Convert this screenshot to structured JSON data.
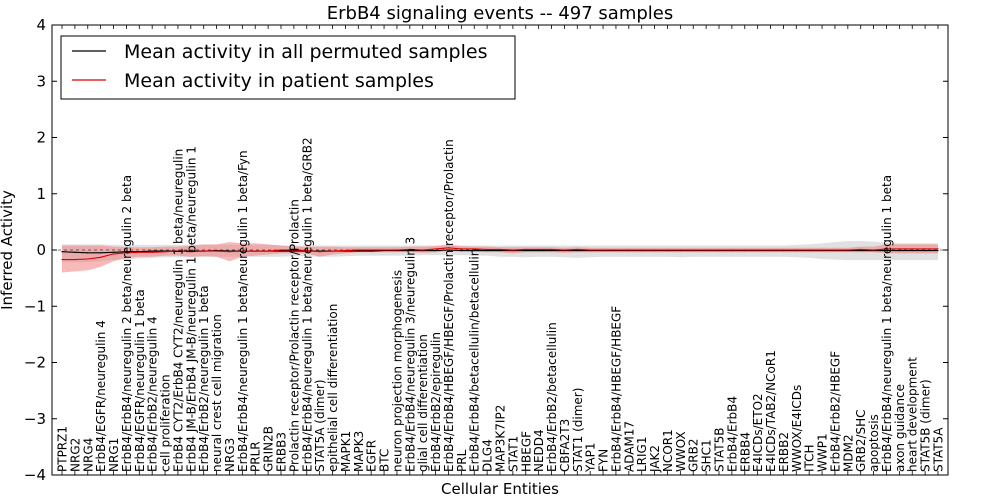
{
  "chart_data": {
    "type": "line",
    "title": "ErbB4 signaling events -- 497 samples",
    "xlabel": "Cellular Entities",
    "ylabel": "Inferred Activity",
    "ylim": [
      -4,
      4
    ],
    "yticks": [
      "−4",
      "−3",
      "−2",
      "−1",
      "0",
      "1",
      "2",
      "3",
      "4"
    ],
    "yticks_values": [
      -4,
      -3,
      -2,
      -1,
      0,
      1,
      2,
      3,
      4
    ],
    "legend_position": "top-left",
    "colors": {
      "permuted_line": "#000000",
      "patient_line": "#e00000",
      "permuted_band": "#c8c8c8",
      "patient_band": "#f08080"
    },
    "categories": [
      "PTPRZ1",
      "NRG2",
      "NRG4",
      "ErbB4/EGFR/neuregulin 4",
      "NRG1",
      "ErbB4/ErbB4/neuregulin 2 beta/neuregulin 2 beta",
      "ErbB4/EGFR/neuregulin 1 beta",
      "ErbB4/ErbB2/neuregulin 4",
      "cell proliferation",
      "ErbB4 CYT2/ErbB4 CYT2/neuregulin 1 beta/neuregulin",
      "ErbB4 JM-B/ErbB4 JM-B/neuregulin 1 beta/neuregulin 1",
      "ErbB4/ErbB2/neuregulin 1 beta",
      "neural crest cell migration",
      "NRG3",
      "ErbB4/ErbB4/neuregulin 1 beta/neuregulin 1 beta/Fyn",
      "PRLR",
      "GRIN2B",
      "ERBB3",
      "Prolactin receptor/Prolactin receptor/Prolactin",
      "ErbB4/ErbB4/neuregulin 1 beta/neuregulin 1 beta/GRB2",
      "STAT5A (dimer)",
      "epithelial cell differentiation",
      "MAPK1",
      "MAPK3",
      "EGFR",
      "BTC",
      "neuron projection morphogenesis",
      "ErbB4/ErbB4/neuregulin 3/neuregulin 3",
      "glial cell differentiation",
      "ErbB4/ErbB2/epiregulin",
      "ErbB4/ErbB4/HBEGF/HBEGF/Prolactin receptor/Prolactin",
      "PRL",
      "ErbB4/ErbB4/betacellulin/betacellulin",
      "DLG4",
      "MAP3K7IP2",
      "STAT1",
      "HBEGF",
      "NEDD4",
      "ErbB4/ErbB2/betacellulin",
      "CBFA2T3",
      "STAT1 (dimer)",
      "YAP1",
      "FYN",
      "ErbB4/ErbB4/HBEGF/HBEGF",
      "ADAM17",
      "LRIG1",
      "JAK2",
      "NCOR1",
      "WWOX",
      "GRB2",
      "SHC1",
      "STAT5B",
      "ErbB4/ErbB4",
      "ERBB4",
      "E4ICDs/ETO2",
      "E4ICDs/TAB2/NCoR1",
      "ERBB2",
      "WWOX/E4ICDs",
      "ITCH",
      "WWP1",
      "ErbB4/ErbB2/HBEGF",
      "MDM2",
      "GRB2/SHC",
      "apoptosis",
      "ErbB4/ErbB4/neuregulin 1 beta/neuregulin 1 beta",
      "axon guidance",
      "heart development",
      "STAT5B (dimer)",
      "STAT5A"
    ],
    "series": [
      {
        "name": "Mean activity in all permuted samples",
        "values": [
          -0.03,
          -0.04,
          -0.05,
          -0.05,
          -0.04,
          -0.03,
          -0.03,
          -0.02,
          -0.02,
          -0.02,
          -0.02,
          -0.02,
          -0.01,
          -0.02,
          -0.02,
          -0.02,
          -0.02,
          -0.02,
          -0.02,
          -0.02,
          -0.02,
          -0.02,
          -0.02,
          -0.02,
          -0.02,
          -0.01,
          -0.01,
          -0.01,
          -0.01,
          -0.01,
          0.0,
          -0.01,
          -0.01,
          -0.01,
          -0.01,
          -0.01,
          -0.01,
          -0.01,
          -0.01,
          -0.01,
          -0.01,
          -0.01,
          -0.01,
          -0.01,
          -0.01,
          -0.01,
          -0.01,
          -0.01,
          -0.01,
          -0.01,
          -0.01,
          -0.01,
          -0.01,
          -0.01,
          -0.01,
          -0.01,
          -0.01,
          -0.01,
          -0.01,
          -0.01,
          -0.01,
          -0.01,
          -0.01,
          -0.01,
          -0.01,
          -0.01,
          -0.01,
          -0.01,
          -0.01
        ],
        "lower": [
          -0.22,
          -0.22,
          -0.22,
          -0.2,
          -0.18,
          -0.17,
          -0.15,
          -0.14,
          -0.13,
          -0.13,
          -0.13,
          -0.12,
          -0.12,
          -0.12,
          -0.12,
          -0.12,
          -0.12,
          -0.12,
          -0.11,
          -0.11,
          -0.12,
          -0.12,
          -0.11,
          -0.1,
          -0.1,
          -0.1,
          -0.1,
          -0.1,
          -0.09,
          -0.09,
          -0.09,
          -0.09,
          -0.1,
          -0.1,
          -0.12,
          -0.12,
          -0.13,
          -0.12,
          -0.12,
          -0.13,
          -0.14,
          -0.13,
          -0.12,
          -0.12,
          -0.12,
          -0.12,
          -0.12,
          -0.12,
          -0.13,
          -0.12,
          -0.12,
          -0.12,
          -0.12,
          -0.12,
          -0.12,
          -0.12,
          -0.12,
          -0.13,
          -0.14,
          -0.16,
          -0.17,
          -0.18,
          -0.18,
          -0.18,
          -0.18,
          -0.18,
          -0.18,
          -0.18,
          -0.18
        ],
        "upper": [
          0.1,
          0.1,
          0.1,
          0.1,
          0.09,
          0.09,
          0.09,
          0.09,
          0.09,
          0.09,
          0.09,
          0.09,
          0.09,
          0.09,
          0.09,
          0.09,
          0.09,
          0.08,
          0.08,
          0.08,
          0.08,
          0.08,
          0.08,
          0.08,
          0.08,
          0.08,
          0.08,
          0.08,
          0.08,
          0.08,
          0.08,
          0.08,
          0.08,
          0.08,
          0.08,
          0.08,
          0.08,
          0.08,
          0.08,
          0.08,
          0.08,
          0.08,
          0.08,
          0.08,
          0.08,
          0.08,
          0.08,
          0.08,
          0.08,
          0.08,
          0.08,
          0.08,
          0.08,
          0.08,
          0.08,
          0.08,
          0.08,
          0.09,
          0.1,
          0.12,
          0.14,
          0.16,
          0.16,
          0.15,
          0.13,
          0.12,
          0.12,
          0.12,
          0.12
        ]
      },
      {
        "name": "Mean activity in patient samples",
        "values": [
          -0.17,
          -0.17,
          -0.16,
          -0.13,
          -0.07,
          -0.05,
          -0.04,
          -0.04,
          -0.03,
          -0.02,
          -0.03,
          -0.02,
          -0.02,
          -0.03,
          -0.02,
          -0.02,
          -0.02,
          0.0,
          0.0,
          -0.01,
          -0.03,
          -0.02,
          -0.01,
          0.0,
          0.0,
          0.0,
          0.0,
          0.01,
          0.0,
          0.02,
          0.04,
          0.02,
          0.02,
          0.01,
          0.01,
          0.0,
          0.01,
          0.01,
          0.01,
          0.0,
          0.01,
          0.0,
          0.0,
          0.0,
          0.0,
          0.0,
          0.0,
          0.0,
          0.0,
          0.0,
          0.0,
          0.0,
          0.0,
          0.0,
          0.0,
          0.0,
          0.0,
          0.0,
          0.0,
          0.0,
          0.0,
          0.0,
          0.01,
          0.0,
          0.02,
          0.02,
          0.02,
          0.02,
          0.02
        ],
        "lower": [
          -0.4,
          -0.38,
          -0.36,
          -0.3,
          -0.2,
          -0.14,
          -0.12,
          -0.12,
          -0.1,
          -0.1,
          -0.12,
          -0.11,
          -0.12,
          -0.2,
          -0.12,
          -0.1,
          -0.08,
          -0.06,
          -0.06,
          -0.06,
          -0.12,
          -0.08,
          -0.06,
          -0.04,
          -0.04,
          -0.04,
          -0.04,
          -0.04,
          -0.05,
          -0.04,
          -0.02,
          -0.03,
          -0.03,
          -0.04,
          -0.04,
          -0.06,
          -0.04,
          -0.04,
          -0.04,
          -0.05,
          -0.04,
          -0.04,
          -0.04,
          -0.04,
          -0.04,
          -0.04,
          -0.04,
          -0.04,
          -0.04,
          -0.04,
          -0.04,
          -0.04,
          -0.04,
          -0.04,
          -0.04,
          -0.04,
          -0.04,
          -0.04,
          -0.04,
          -0.04,
          -0.04,
          -0.04,
          -0.04,
          -0.04,
          -0.06,
          -0.06,
          -0.06,
          -0.06,
          -0.06
        ],
        "upper": [
          0.08,
          0.08,
          0.08,
          0.08,
          0.06,
          0.05,
          0.05,
          0.05,
          0.06,
          0.06,
          0.08,
          0.1,
          0.1,
          0.14,
          0.12,
          0.12,
          0.1,
          0.08,
          0.06,
          0.06,
          0.06,
          0.06,
          0.05,
          0.05,
          0.05,
          0.05,
          0.05,
          0.06,
          0.06,
          0.07,
          0.1,
          0.07,
          0.06,
          0.06,
          0.05,
          0.05,
          0.05,
          0.05,
          0.05,
          0.04,
          0.05,
          0.04,
          0.04,
          0.04,
          0.04,
          0.04,
          0.04,
          0.04,
          0.04,
          0.04,
          0.04,
          0.04,
          0.04,
          0.04,
          0.04,
          0.04,
          0.04,
          0.04,
          0.04,
          0.04,
          0.04,
          0.04,
          0.06,
          0.06,
          0.1,
          0.1,
          0.1,
          0.1,
          0.1
        ]
      }
    ]
  }
}
